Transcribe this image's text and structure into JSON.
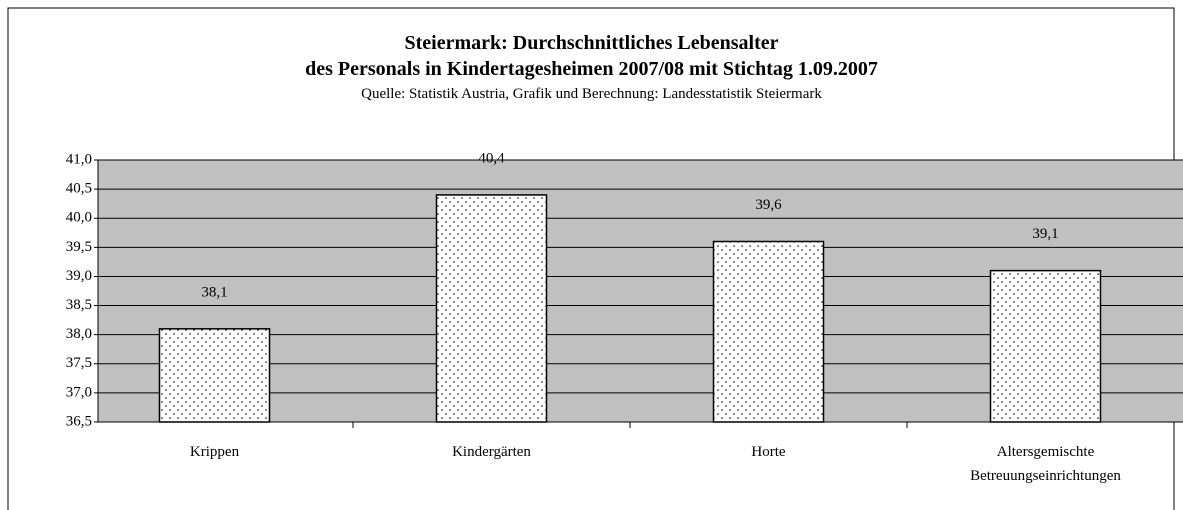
{
  "chart_data": {
    "type": "bar",
    "title": "Steiermark: Durchschnittliches Lebensalter\ndes Personals in Kindertagesheimen 2007/08 mit Stichtag 1.09.2007",
    "subtitle": "Quelle: Statistik Austria, Grafik und Berechnung: Landesstatistik Steiermark",
    "categories": [
      "Krippen",
      "Kindergärten",
      "Horte",
      "Altersgemischte Betreuungseinrichtungen"
    ],
    "values": [
      38.1,
      40.4,
      39.6,
      39.1
    ],
    "value_labels": [
      "38,1",
      "40,4",
      "39,6",
      "39,1"
    ],
    "color": "#ffffff",
    "ylim": [
      36.5,
      41.0
    ],
    "yticks": [
      {
        "value": 36.5,
        "label": "36,5"
      },
      {
        "value": 37.0,
        "label": "37,0"
      },
      {
        "value": 37.5,
        "label": "37,5"
      },
      {
        "value": 38.0,
        "label": "38,0"
      },
      {
        "value": 38.5,
        "label": "38,5"
      },
      {
        "value": 39.0,
        "label": "39,0"
      },
      {
        "value": 39.5,
        "label": "39,5"
      },
      {
        "value": 40.0,
        "label": "40,0"
      },
      {
        "value": 40.5,
        "label": "40,5"
      },
      {
        "value": 41.0,
        "label": "41,0"
      }
    ],
    "grid": true
  }
}
